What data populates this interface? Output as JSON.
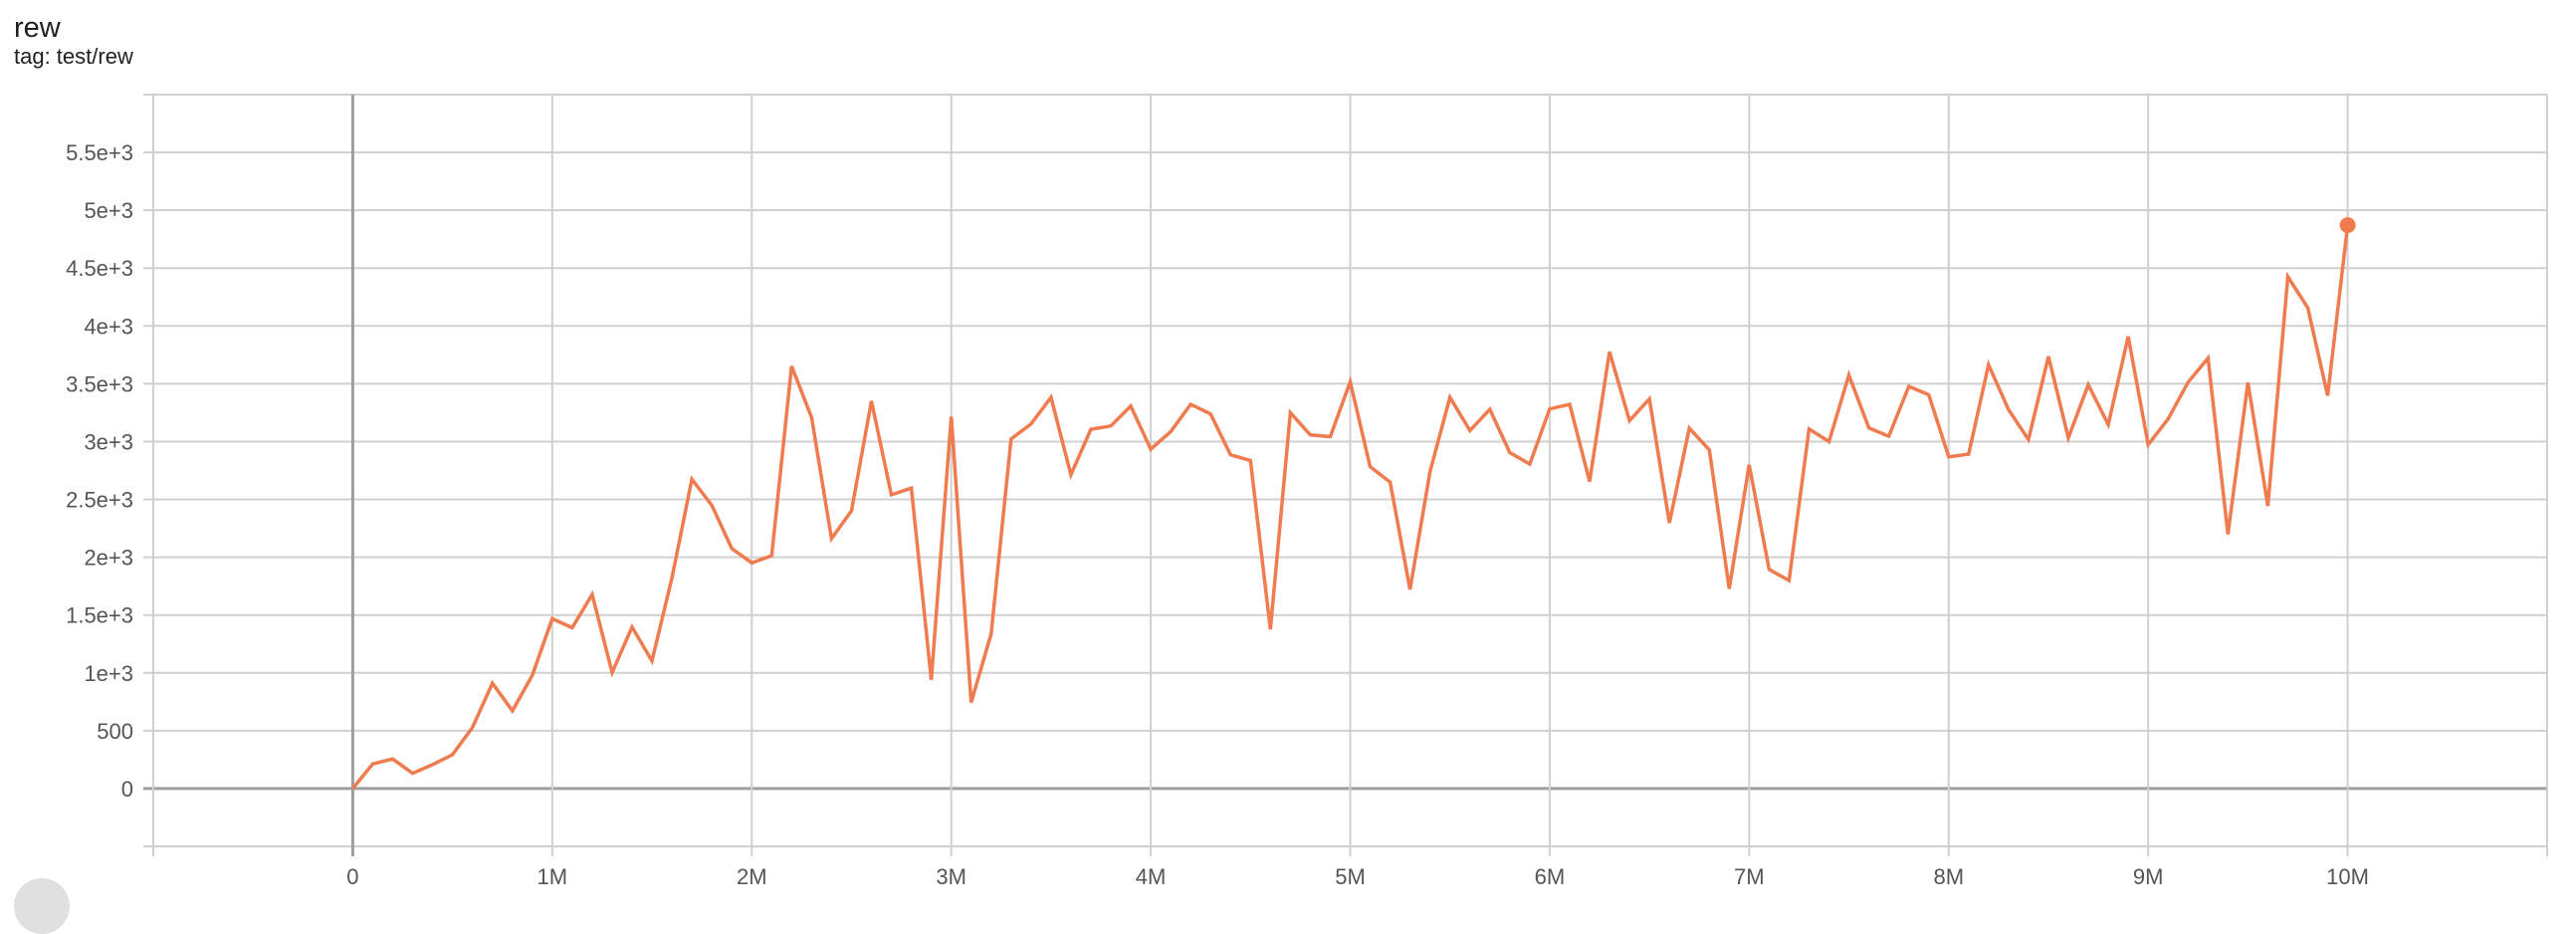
{
  "card": {
    "title": "rew",
    "subtitle": "tag: test/rew"
  },
  "colors": {
    "series": "#ef7b4f",
    "grid": "#d0d0d0",
    "axis": "#9e9e9e"
  },
  "chart_data": {
    "type": "line",
    "title": "rew",
    "xlabel": "",
    "ylabel": "",
    "xlim": [
      -1000000,
      11000000
    ],
    "ylim": [
      -500,
      6000
    ],
    "grid": true,
    "x_ticks": [
      0,
      1000000,
      2000000,
      3000000,
      4000000,
      5000000,
      6000000,
      7000000,
      8000000,
      9000000,
      10000000
    ],
    "x_tick_labels": [
      "0",
      "1M",
      "2M",
      "3M",
      "4M",
      "5M",
      "6M",
      "7M",
      "8M",
      "9M",
      "10M"
    ],
    "y_ticks": [
      0,
      500,
      1000,
      1500,
      2000,
      2500,
      3000,
      3500,
      4000,
      4500,
      5000,
      5500
    ],
    "y_tick_labels": [
      "0",
      "500",
      "1e+3",
      "1.5e+3",
      "2e+3",
      "2.5e+3",
      "3e+3",
      "3.5e+3",
      "4e+3",
      "4.5e+3",
      "5e+3",
      "5.5e+3"
    ],
    "x_step": 100000,
    "series": [
      {
        "values": [
          0,
          213,
          256,
          132,
          207,
          293,
          529,
          911,
          672,
          980,
          1468,
          1391,
          1678,
          1003,
          1397,
          1103,
          1822,
          2675,
          2448,
          2075,
          1951,
          2014,
          3652,
          3207,
          2161,
          2402,
          3351,
          2540,
          2598,
          940,
          3216,
          744,
          1339,
          3023,
          3152,
          3382,
          2713,
          3106,
          3135,
          3307,
          2934,
          3086,
          3322,
          3239,
          2885,
          2836,
          1376,
          3250,
          3057,
          3043,
          3517,
          2784,
          2649,
          1721,
          2741,
          3382,
          3095,
          3279,
          2905,
          2805,
          3282,
          3322,
          2655,
          3776,
          3181,
          3368,
          2296,
          3115,
          2928,
          1727,
          2799,
          1894,
          1799,
          3109,
          3000,
          3575,
          3118,
          3046,
          3477,
          3405,
          2868,
          2891,
          3664,
          3276,
          3017,
          3736,
          3032,
          3491,
          3147,
          3908,
          2974,
          3195,
          3514,
          3721,
          2198,
          3511,
          2443,
          4425,
          4158,
          3397,
          4871
        ]
      }
    ]
  }
}
